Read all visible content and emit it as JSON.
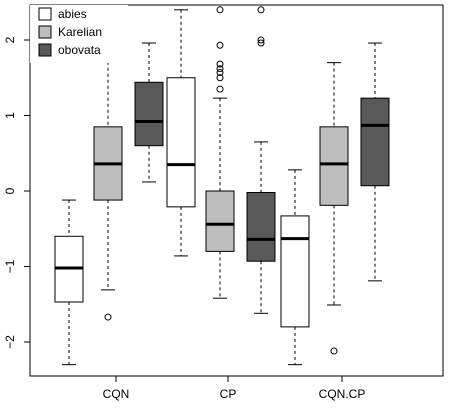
{
  "chart_data": {
    "type": "boxplot",
    "categories": [
      "CQN",
      "CP",
      "CQN.CP"
    ],
    "ylim": [
      -2.5,
      2.5
    ],
    "yticks": [
      -2,
      -1,
      0,
      1,
      2
    ],
    "legend": {
      "position": "top-left"
    },
    "series": [
      {
        "name": "abies",
        "color": "#ffffff",
        "boxes": [
          {
            "category": "CQN",
            "lower_whisker": -2.3,
            "q1": -1.47,
            "median": -1.02,
            "q3": -0.6,
            "upper_whisker": -0.12,
            "outliers": []
          },
          {
            "category": "CP",
            "lower_whisker": -0.86,
            "q1": -0.21,
            "median": 0.35,
            "q3": 1.5,
            "upper_whisker": 2.4,
            "outliers": []
          },
          {
            "category": "CQN.CP",
            "lower_whisker": -2.3,
            "q1": -1.8,
            "median": -0.63,
            "q3": -0.33,
            "upper_whisker": 0.28,
            "outliers": []
          }
        ]
      },
      {
        "name": "Karelian",
        "color": "#bebebe",
        "boxes": [
          {
            "category": "CQN",
            "lower_whisker": -1.31,
            "q1": -0.12,
            "median": 0.36,
            "q3": 0.85,
            "upper_whisker": 2.03,
            "outliers": [
              -1.67
            ]
          },
          {
            "category": "CP",
            "lower_whisker": -1.42,
            "q1": -0.8,
            "median": -0.44,
            "q3": 0.0,
            "upper_whisker": 1.23,
            "outliers": [
              1.35,
              1.5,
              1.57,
              1.62,
              1.68,
              1.93,
              2.4
            ]
          },
          {
            "category": "CQN.CP",
            "lower_whisker": -1.51,
            "q1": -0.19,
            "median": 0.36,
            "q3": 0.85,
            "upper_whisker": 1.7,
            "outliers": [
              -2.12
            ]
          }
        ]
      },
      {
        "name": "obovata",
        "color": "#595959",
        "boxes": [
          {
            "category": "CQN",
            "lower_whisker": 0.12,
            "q1": 0.6,
            "median": 0.92,
            "q3": 1.44,
            "upper_whisker": 1.96,
            "outliers": []
          },
          {
            "category": "CP",
            "lower_whisker": -1.62,
            "q1": -0.93,
            "median": -0.64,
            "q3": -0.02,
            "upper_whisker": 0.65,
            "outliers": [
              1.96,
              2.0,
              2.4
            ]
          },
          {
            "category": "CQN.CP",
            "lower_whisker": -1.19,
            "q1": 0.07,
            "median": 0.87,
            "q3": 1.23,
            "upper_whisker": 1.96,
            "outliers": []
          }
        ]
      }
    ]
  }
}
